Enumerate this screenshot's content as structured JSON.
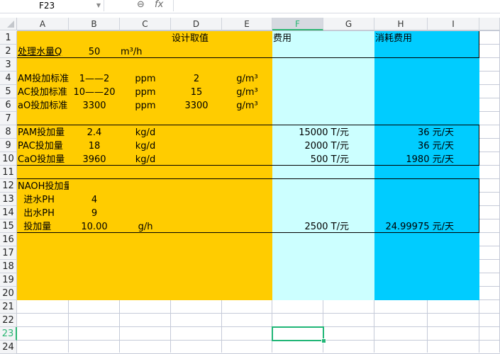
{
  "name_box": "F23",
  "formula_bar": {
    "zoom_icon": "magnifier-icon",
    "fx_label": "fx",
    "value": ""
  },
  "columns": [
    "A",
    "B",
    "C",
    "D",
    "E",
    "F",
    "G",
    "H",
    "I"
  ],
  "rows": [
    "1",
    "2",
    "3",
    "4",
    "5",
    "6",
    "7",
    "8",
    "9",
    "10",
    "11",
    "12",
    "13",
    "14",
    "15",
    "16",
    "17",
    "18",
    "19",
    "20",
    "21",
    "22",
    "23",
    "24"
  ],
  "selected_cell": "F23",
  "colors": {
    "orange_fill": "#FFCC00",
    "light_cyan_fill": "#CCFFFF",
    "cyan_fill": "#00CCFF",
    "selection": "#21B677"
  },
  "cells": [
    {
      "ref": "D1",
      "text": "设计取值",
      "align": "left"
    },
    {
      "ref": "F1",
      "text": "费用",
      "align": "left"
    },
    {
      "ref": "H1",
      "text": "消耗费用",
      "align": "left"
    },
    {
      "ref": "A2",
      "text": "处理水量Q",
      "align": "left",
      "underline": true
    },
    {
      "ref": "B2",
      "text": "50",
      "align": "center"
    },
    {
      "ref": "C2",
      "text": "m³/h",
      "align": "left"
    },
    {
      "ref": "A4",
      "text": "AM投加标准",
      "align": "left",
      "clip": true
    },
    {
      "ref": "B4",
      "text": "1——2",
      "align": "center"
    },
    {
      "ref": "C4",
      "text": "ppm",
      "align": "center"
    },
    {
      "ref": "D4",
      "text": "2",
      "align": "center"
    },
    {
      "ref": "E4",
      "text": "g/m³",
      "align": "center"
    },
    {
      "ref": "A5",
      "text": "AC投加标准",
      "align": "left",
      "clip": true
    },
    {
      "ref": "B5",
      "text": "10——20",
      "align": "center"
    },
    {
      "ref": "C5",
      "text": "ppm",
      "align": "center"
    },
    {
      "ref": "D5",
      "text": "15",
      "align": "center"
    },
    {
      "ref": "E5",
      "text": "g/m³",
      "align": "center"
    },
    {
      "ref": "A6",
      "text": "aO投加标准",
      "align": "left",
      "clip": true
    },
    {
      "ref": "B6",
      "text": "3300",
      "align": "center"
    },
    {
      "ref": "C6",
      "text": "ppm",
      "align": "center"
    },
    {
      "ref": "D6",
      "text": "3300",
      "align": "center"
    },
    {
      "ref": "E6",
      "text": "g/m³",
      "align": "center"
    },
    {
      "ref": "A8",
      "text": "PAM投加量",
      "align": "left"
    },
    {
      "ref": "B8",
      "text": "2.4",
      "align": "center"
    },
    {
      "ref": "C8",
      "text": "kg/d",
      "align": "center"
    },
    {
      "ref": "F8",
      "text": "15000 T/元",
      "align": "right"
    },
    {
      "ref": "H8",
      "text": "36 元/天",
      "align": "right"
    },
    {
      "ref": "A9",
      "text": "PAC投加量",
      "align": "left"
    },
    {
      "ref": "B9",
      "text": "18",
      "align": "center"
    },
    {
      "ref": "C9",
      "text": "kg/d",
      "align": "center"
    },
    {
      "ref": "F9",
      "text": "2000 T/元",
      "align": "right"
    },
    {
      "ref": "H9",
      "text": "36 元/天",
      "align": "right"
    },
    {
      "ref": "A10",
      "text": "CaO投加量",
      "align": "left"
    },
    {
      "ref": "B10",
      "text": "3960",
      "align": "center"
    },
    {
      "ref": "C10",
      "text": "kg/d",
      "align": "center"
    },
    {
      "ref": "F10",
      "text": "500 T/元",
      "align": "right"
    },
    {
      "ref": "H10",
      "text": "1980 元/天",
      "align": "right"
    },
    {
      "ref": "A12",
      "text": "NAOH投加量",
      "align": "left",
      "clip": true
    },
    {
      "ref": "A13",
      "text": "  进水PH",
      "align": "left"
    },
    {
      "ref": "B13",
      "text": "4",
      "align": "center"
    },
    {
      "ref": "A14",
      "text": "  出水PH",
      "align": "left"
    },
    {
      "ref": "B14",
      "text": "9",
      "align": "center"
    },
    {
      "ref": "A15",
      "text": "  投加量",
      "align": "left"
    },
    {
      "ref": "B15",
      "text": "10.00",
      "align": "center"
    },
    {
      "ref": "C15",
      "text": "g/h",
      "align": "center"
    },
    {
      "ref": "F15",
      "text": "2500 T/元",
      "align": "right"
    },
    {
      "ref": "H15",
      "text": "24.99975 元/天",
      "align": "right"
    }
  ]
}
